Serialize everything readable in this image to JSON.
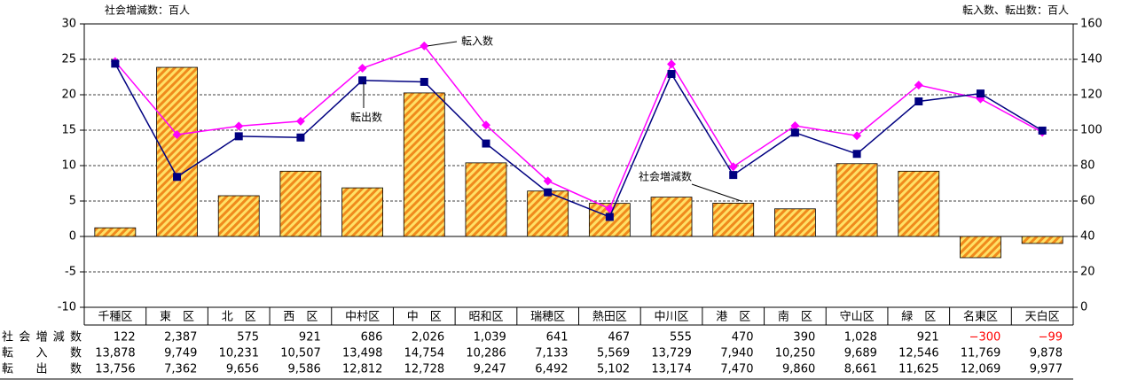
{
  "chart_data": {
    "type": "bar_line_table",
    "y_unit_label": "社会増減数：百人",
    "y2_unit_label": "転入数、転出数：百人",
    "categories": [
      "千種区",
      "東　区",
      "北　区",
      "西　区",
      "中村区",
      "中　区",
      "昭和区",
      "瑞穂区",
      "熱田区",
      "中川区",
      "港　区",
      "南　区",
      "守山区",
      "緑　区",
      "名東区",
      "天白区"
    ],
    "series": [
      {
        "name": "社会増減数",
        "type": "bar",
        "axis": "y",
        "values": [
          1.22,
          23.87,
          5.75,
          9.21,
          6.86,
          20.26,
          10.39,
          6.41,
          4.67,
          5.55,
          4.7,
          3.9,
          10.28,
          9.21,
          -3.0,
          -0.99
        ],
        "value_labels": [
          "122",
          "2,387",
          "575",
          "921",
          "686",
          "2,026",
          "1,039",
          "641",
          "467",
          "555",
          "470",
          "390",
          "1,028",
          "921",
          "−300",
          "−99"
        ]
      },
      {
        "name": "転入数",
        "type": "line",
        "axis": "y2",
        "color": "#ff00ff",
        "marker": "diamond",
        "values": [
          138.78,
          97.49,
          102.31,
          105.07,
          134.98,
          147.54,
          102.86,
          71.33,
          55.69,
          137.29,
          79.4,
          102.5,
          96.89,
          125.46,
          117.69,
          98.78
        ],
        "value_labels": [
          "13,878",
          "9,749",
          "10,231",
          "10,507",
          "13,498",
          "14,754",
          "10,286",
          "7,133",
          "5,569",
          "13,729",
          "7,940",
          "10,250",
          "9,689",
          "12,546",
          "11,769",
          "9,878"
        ]
      },
      {
        "name": "転出数",
        "type": "line",
        "axis": "y2",
        "color": "#000080",
        "marker": "square",
        "values": [
          137.56,
          73.62,
          96.56,
          95.86,
          128.12,
          127.28,
          92.47,
          64.92,
          51.02,
          131.74,
          74.7,
          98.6,
          86.61,
          116.25,
          120.69,
          99.77
        ],
        "value_labels": [
          "13,756",
          "7,362",
          "9,656",
          "9,586",
          "12,812",
          "12,728",
          "9,247",
          "6,492",
          "5,102",
          "13,174",
          "7,470",
          "9,860",
          "8,661",
          "11,625",
          "12,069",
          "9,977"
        ]
      }
    ],
    "ylim": [
      -10,
      30
    ],
    "yticks": [
      -10,
      -5,
      0,
      5,
      10,
      15,
      20,
      25,
      30
    ],
    "y2lim": [
      0,
      160
    ],
    "y2ticks": [
      0,
      20,
      40,
      60,
      80,
      100,
      120,
      140,
      160
    ],
    "grid": true,
    "negative_label_color": "#ff0000"
  }
}
